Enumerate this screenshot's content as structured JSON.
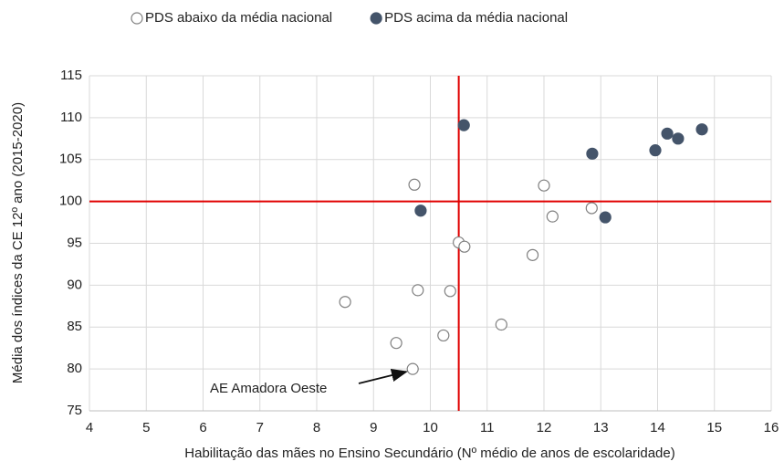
{
  "chart_data": {
    "type": "scatter",
    "x_label": "Habilitação das mães no Ensino Secundário (Nº médio de anos de escolaridade)",
    "y_label": "Média dos índices da CE 12º ano (2015-2020)",
    "annotation": "AE Amadora Oeste",
    "xlim": [
      4,
      16
    ],
    "xticks": [
      4,
      5,
      6,
      7,
      8,
      9,
      10,
      11,
      12,
      13,
      14,
      15,
      16
    ],
    "ylim": [
      75,
      115
    ],
    "yticks": [
      75,
      80,
      85,
      90,
      95,
      100,
      105,
      110,
      115
    ],
    "grid": true,
    "reference_lines": {
      "x": 10.5,
      "y": 100,
      "color": "#e00000"
    },
    "series": [
      {
        "name": "PDS abaixo da média nacional",
        "color": "#44546a",
        "filled": false,
        "x": [
          8.5,
          9.72,
          9.78,
          9.4,
          9.69,
          10.23,
          10.35,
          10.5,
          10.6,
          11.25,
          11.8,
          12.0,
          12.15,
          12.84
        ],
        "values": [
          88,
          102,
          89.4,
          83.1,
          80,
          84,
          89.3,
          95.1,
          94.6,
          85.3,
          93.6,
          101.9,
          98.2,
          99.2
        ]
      },
      {
        "name": "PDS acima da média nacional",
        "color": "#44546a",
        "filled": true,
        "x": [
          10.59,
          9.83,
          12.85,
          13.08,
          13.96,
          14.17,
          14.36,
          14.78
        ],
        "values": [
          109.1,
          98.9,
          105.7,
          98.1,
          106.1,
          108.1,
          107.5,
          108.6
        ]
      }
    ]
  }
}
